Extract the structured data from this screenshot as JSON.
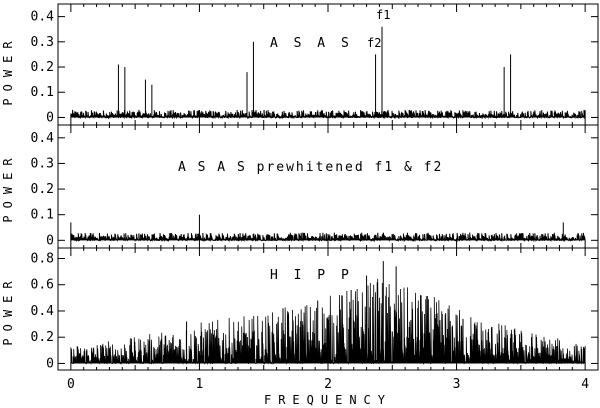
{
  "chart_data": {
    "type": "line",
    "xlabel": "FREQUENCY",
    "x_ticks": [
      "0",
      "1",
      "2",
      "3",
      "4"
    ],
    "xlim": [
      -0.1,
      4.1
    ],
    "panels": [
      {
        "ylabel": "POWER",
        "label": "A S A S",
        "ylim": [
          -0.03,
          0.45
        ],
        "y_ticks": [
          "0",
          "0.1",
          "0.2",
          "0.3",
          "0.4"
        ],
        "y_tick_values": [
          0,
          0.1,
          0.2,
          0.3,
          0.4
        ],
        "noise_level": 0.025,
        "peaks": [
          {
            "x": 0.37,
            "y": 0.21
          },
          {
            "x": 0.42,
            "y": 0.2
          },
          {
            "x": 0.58,
            "y": 0.15
          },
          {
            "x": 0.63,
            "y": 0.13
          },
          {
            "x": 1.37,
            "y": 0.18
          },
          {
            "x": 1.42,
            "y": 0.3
          },
          {
            "x": 2.37,
            "y": 0.25
          },
          {
            "x": 2.42,
            "y": 0.36
          },
          {
            "x": 3.37,
            "y": 0.2
          },
          {
            "x": 3.42,
            "y": 0.25
          }
        ],
        "annotations": [
          {
            "text": "f1",
            "x": 2.42,
            "y": 0.39
          },
          {
            "text": "f2",
            "x": 2.35,
            "y": 0.28
          }
        ]
      },
      {
        "ylabel": "POWER",
        "label": "A S A S prewhitened f1 & f2",
        "ylim": [
          -0.03,
          0.45
        ],
        "y_ticks": [
          "0",
          "0.1",
          "0.2",
          "0.3",
          "0.4"
        ],
        "y_tick_values": [
          0,
          0.1,
          0.2,
          0.3,
          0.4
        ],
        "noise_level": 0.025,
        "peaks": [
          {
            "x": 0.0,
            "y": 0.07
          },
          {
            "x": 1.0,
            "y": 0.1
          },
          {
            "x": 3.83,
            "y": 0.07
          }
        ],
        "annotations": []
      },
      {
        "ylabel": "POWER",
        "label": "H I P P",
        "ylim": [
          -0.05,
          0.88
        ],
        "y_ticks": [
          "0",
          "0.2",
          "0.4",
          "0.6",
          "0.8"
        ],
        "y_tick_values": [
          0,
          0.2,
          0.4,
          0.6,
          0.8
        ],
        "noise_level": 0.12,
        "envelope": [
          {
            "x": 0.0,
            "y": 0.14
          },
          {
            "x": 0.5,
            "y": 0.2
          },
          {
            "x": 1.0,
            "y": 0.32
          },
          {
            "x": 1.5,
            "y": 0.38
          },
          {
            "x": 2.0,
            "y": 0.52
          },
          {
            "x": 2.4,
            "y": 0.66
          },
          {
            "x": 2.8,
            "y": 0.52
          },
          {
            "x": 3.2,
            "y": 0.35
          },
          {
            "x": 3.6,
            "y": 0.24
          },
          {
            "x": 4.0,
            "y": 0.14
          }
        ],
        "peaks": [
          {
            "x": 2.43,
            "y": 0.78
          },
          {
            "x": 2.53,
            "y": 0.74
          },
          {
            "x": 2.3,
            "y": 0.67
          },
          {
            "x": 2.18,
            "y": 0.56
          },
          {
            "x": 2.72,
            "y": 0.52
          },
          {
            "x": 1.92,
            "y": 0.48
          },
          {
            "x": 1.65,
            "y": 0.42
          },
          {
            "x": 3.05,
            "y": 0.34
          },
          {
            "x": 0.9,
            "y": 0.32
          }
        ],
        "annotations": []
      }
    ]
  }
}
